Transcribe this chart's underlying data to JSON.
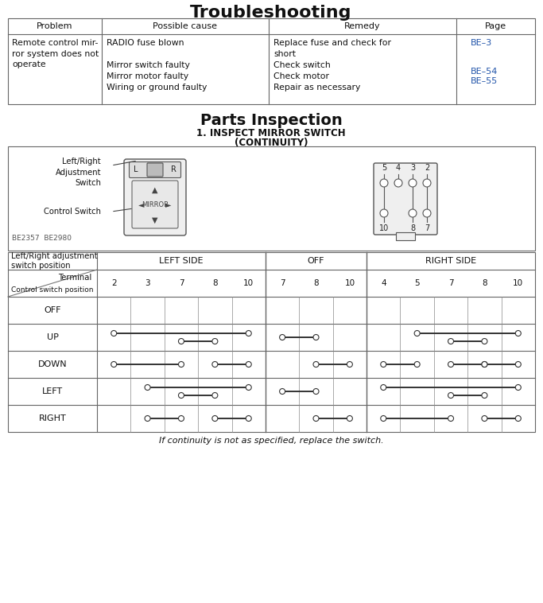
{
  "title1": "Troubleshooting",
  "title2": "Parts Inspection",
  "subtitle2_line1": "1. INSPECT MIRROR SWITCH",
  "subtitle2_line2": "(CONTINUITY)",
  "bg_color": "#ffffff",
  "text_color": "#1a1a1a",
  "blue_color": "#2255aa",
  "table1_headers": [
    "Problem",
    "Possible cause",
    "Remedy",
    "Page"
  ],
  "problem": "Remote control mir-\nror system does not\noperate",
  "causes_lines": [
    "RADIO fuse blown",
    "",
    "Mirror switch faulty",
    "Mirror motor faulty",
    "Wiring or ground faulty"
  ],
  "remedy_lines": [
    "Replace fuse and check for",
    "short",
    "Check switch",
    "Check motor",
    "Repair as necessary"
  ],
  "pages": [
    "BE–3",
    "BE–54",
    "BE–55"
  ],
  "diagram_label": "BE2357  BE2980",
  "footer_note": "If continuity is not as specified, replace the switch.",
  "row_labels": [
    "OFF",
    "UP",
    "DOWN",
    "LEFT",
    "RIGHT"
  ],
  "term_nums_left": [
    "2",
    "3",
    "7",
    "8",
    "10"
  ],
  "term_nums_off": [
    "7",
    "8",
    "10"
  ],
  "term_nums_right": [
    "4",
    "5",
    "7",
    "8",
    "10"
  ],
  "group_names": [
    "LEFT SIDE",
    "OFF",
    "RIGHT SIDE"
  ],
  "header1_label": "Left/Right adjustment\nswitch position",
  "terminal_label": "Terminal",
  "ctrl_sw_label": "Control switch position"
}
